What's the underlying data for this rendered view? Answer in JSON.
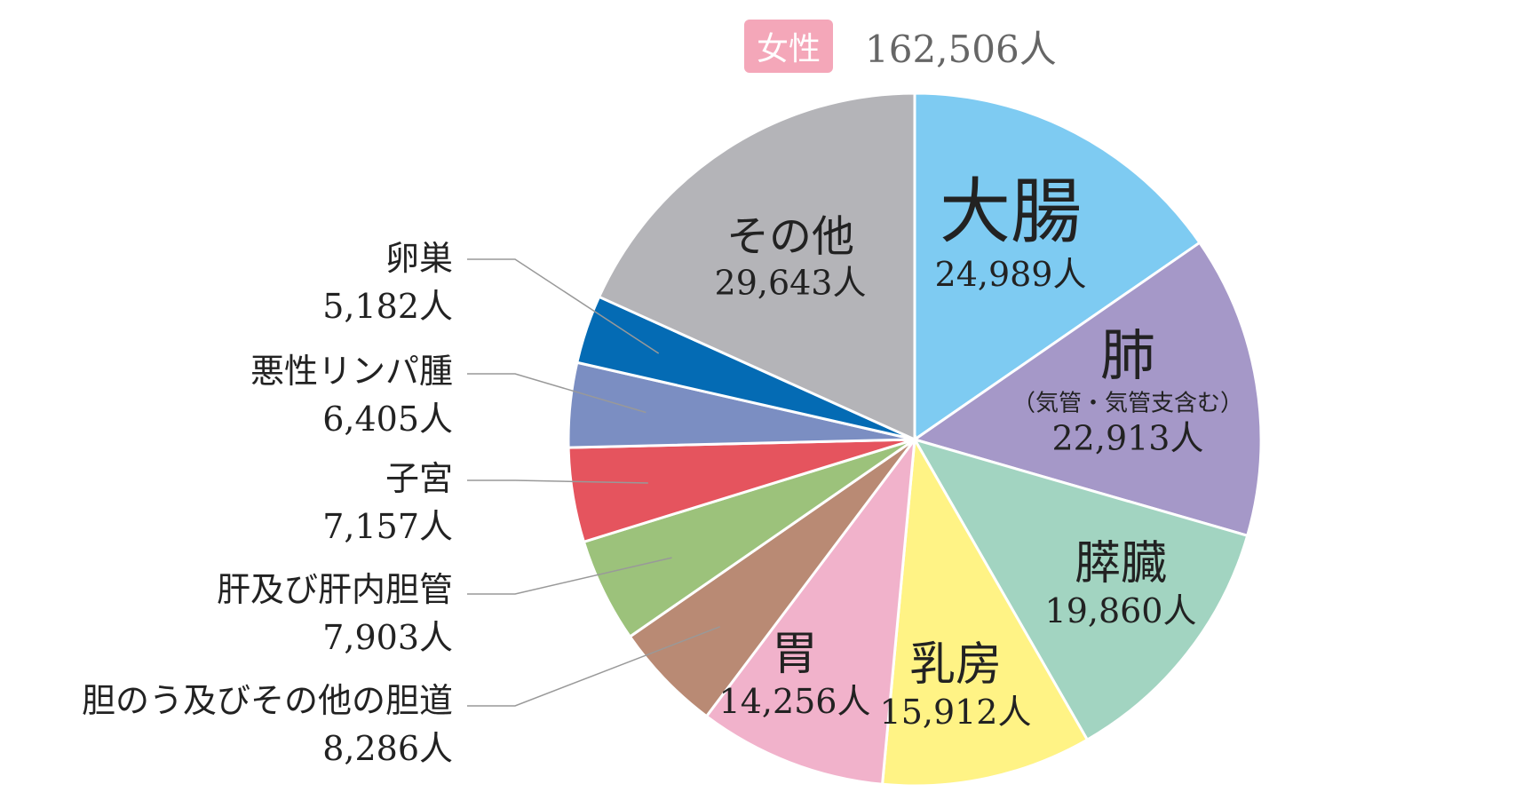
{
  "header": {
    "badge": "女性",
    "total": "162,506人"
  },
  "colors": {
    "badge": "#f4a7b9"
  },
  "chart_data": {
    "type": "pie",
    "title": "",
    "unit": "人",
    "total": 162506,
    "slices": [
      {
        "name": "大腸",
        "value": 24989,
        "value_label": "24,989人",
        "color": "#7ecbf2"
      },
      {
        "name": "肺",
        "note": "（気管・気管支含む）",
        "value": 22913,
        "value_label": "22,913人",
        "color": "#a598c8"
      },
      {
        "name": "膵臓",
        "value": 19860,
        "value_label": "19,860人",
        "color": "#a2d4c1"
      },
      {
        "name": "乳房",
        "value": 15912,
        "value_label": "15,912人",
        "color": "#fff385"
      },
      {
        "name": "胃",
        "value": 14256,
        "value_label": "14,256人",
        "color": "#f1b2cb"
      },
      {
        "name": "胆のう及びその他の胆道",
        "value": 8286,
        "value_label": "8,286人",
        "color": "#b98a74"
      },
      {
        "name": "肝及び肝内胆管",
        "value": 7903,
        "value_label": "7,903人",
        "color": "#9cc27b"
      },
      {
        "name": "子宮",
        "value": 7157,
        "value_label": "7,157人",
        "color": "#e5545e"
      },
      {
        "name": "悪性リンパ腫",
        "value": 6405,
        "value_label": "6,405人",
        "color": "#7b8ec2"
      },
      {
        "name": "卵巣",
        "value": 5182,
        "value_label": "5,182人",
        "color": "#046bb4"
      },
      {
        "name": "その他",
        "value": 29643,
        "value_label": "29,643人",
        "color": "#b4b4b8"
      }
    ]
  }
}
